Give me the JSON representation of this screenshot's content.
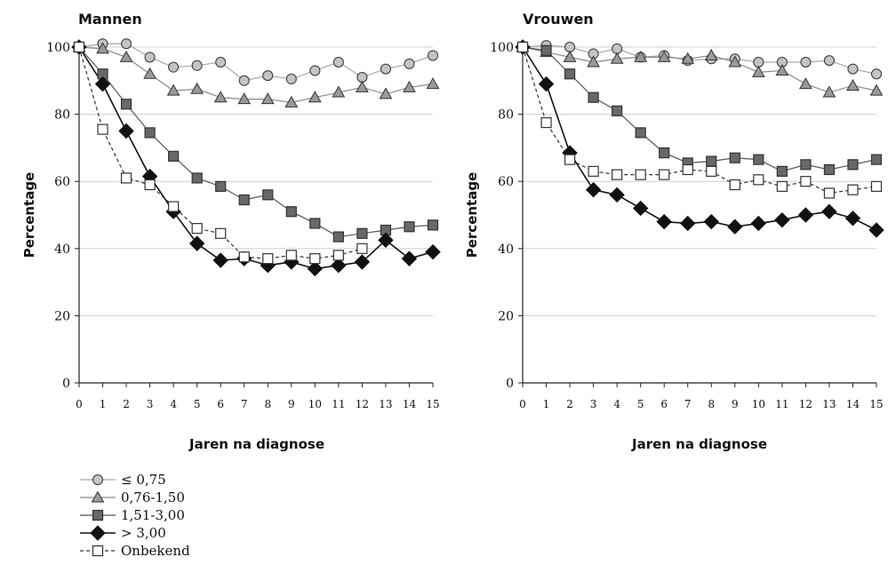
{
  "chart_data": [
    {
      "type": "line",
      "title": "Mannen",
      "xlabel": "Jaren na diagnose",
      "ylabel": "Percentage",
      "xlim": [
        0,
        15
      ],
      "ylim": [
        0,
        100
      ],
      "x": [
        0,
        1,
        2,
        3,
        4,
        5,
        6,
        7,
        8,
        9,
        10,
        11,
        12,
        13,
        14,
        15
      ],
      "x_ticks": [
        "0",
        "1",
        "2",
        "3",
        "4",
        "5",
        "6",
        "7",
        "8",
        "9",
        "10",
        "11",
        "12",
        "13",
        "14",
        "15"
      ],
      "y_ticks": [
        "0",
        "20",
        "40",
        "60",
        "80",
        "100"
      ],
      "grid": "horizontal",
      "series": [
        {
          "name": "≤ 0,75",
          "values": [
            100,
            101,
            101,
            97,
            94,
            94.5,
            95.5,
            90,
            91.5,
            90.5,
            93,
            95.5,
            91,
            93.5,
            95,
            97.5
          ]
        },
        {
          "name": "0,76-1,50",
          "values": [
            100,
            99.5,
            97,
            92,
            87,
            87.5,
            85,
            84.5,
            84.5,
            83.5,
            85,
            86.5,
            88,
            86,
            88,
            89
          ]
        },
        {
          "name": "1,51-3,00",
          "values": [
            100,
            92,
            83,
            74.5,
            67.5,
            61,
            58.5,
            54.5,
            56,
            51,
            47.5,
            43.5,
            44.5,
            45.5,
            46.5,
            47
          ]
        },
        {
          "name": "> 3,00",
          "values": [
            100,
            89,
            75,
            61.5,
            51,
            41.5,
            36.5,
            37,
            35,
            36,
            34,
            35,
            36,
            42.5,
            37,
            39
          ]
        },
        {
          "name": "Onbekend",
          "values": [
            100,
            75.5,
            61,
            59,
            52.5,
            46,
            44.5,
            37.5,
            37,
            38,
            37,
            38,
            40,
            null,
            null,
            null
          ]
        }
      ]
    },
    {
      "type": "line",
      "title": "Vrouwen",
      "xlabel": "Jaren na diagnose",
      "ylabel": "Percentage",
      "xlim": [
        0,
        15
      ],
      "ylim": [
        0,
        100
      ],
      "x": [
        0,
        1,
        2,
        3,
        4,
        5,
        6,
        7,
        8,
        9,
        10,
        11,
        12,
        13,
        14,
        15
      ],
      "x_ticks": [
        "0",
        "1",
        "2",
        "3",
        "4",
        "5",
        "6",
        "7",
        "8",
        "9",
        "10",
        "11",
        "12",
        "13",
        "14",
        "15"
      ],
      "y_ticks": [
        "0",
        "20",
        "40",
        "60",
        "80",
        "100"
      ],
      "grid": "horizontal",
      "series": [
        {
          "name": "≤ 0,75",
          "values": [
            100,
            100.5,
            100,
            98,
            99.5,
            97,
            97.5,
            96,
            96.5,
            96.5,
            95.5,
            95.5,
            95.5,
            96,
            93.5,
            92
          ]
        },
        {
          "name": "0,76-1,50",
          "values": [
            100,
            98.5,
            97,
            95.5,
            96.5,
            97,
            97,
            96.5,
            97.5,
            95.5,
            92.5,
            93,
            89,
            86.5,
            88.5,
            87
          ]
        },
        {
          "name": "1,51-3,00",
          "values": [
            100,
            99,
            92,
            85,
            81,
            74.5,
            68.5,
            65.5,
            66,
            67,
            66.5,
            63,
            65,
            63.5,
            65,
            66.5
          ]
        },
        {
          "name": "> 3,00",
          "values": [
            100,
            89,
            68.5,
            57.5,
            56,
            52,
            48,
            47.5,
            48,
            46.5,
            47.5,
            48.5,
            50,
            51,
            49,
            45.5
          ]
        },
        {
          "name": "Onbekend",
          "values": [
            100,
            77.5,
            66.5,
            63,
            62,
            62,
            62,
            63.5,
            63,
            59,
            60.5,
            58.5,
            60,
            56.5,
            57.5,
            58.5
          ]
        }
      ]
    }
  ],
  "legend": [
    {
      "label": "≤ 0,75",
      "marker": "circle",
      "fill": "#c4c4c4",
      "line": "#a8a8a8",
      "dashed": false
    },
    {
      "label": "0,76-1,50",
      "marker": "triangle",
      "fill": "#9a9a9a",
      "line": "#8a8a8a",
      "dashed": false
    },
    {
      "label": "1,51-3,00",
      "marker": "square",
      "fill": "#686868",
      "line": "#555555",
      "dashed": false
    },
    {
      "label": "> 3,00",
      "marker": "diamond",
      "fill": "#111111",
      "line": "#111111",
      "dashed": false
    },
    {
      "label": "Onbekend",
      "marker": "square",
      "fill": "#ffffff",
      "line": "#333333",
      "dashed": true
    }
  ]
}
